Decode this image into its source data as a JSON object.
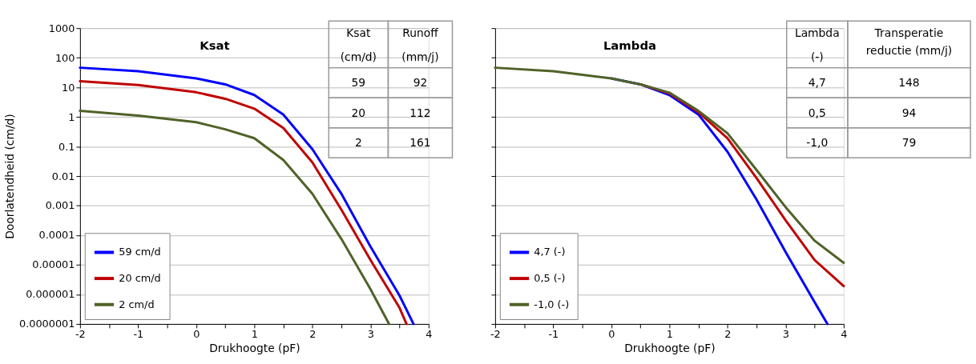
{
  "chart_data": [
    {
      "type": "line",
      "title": "Ksat",
      "xlabel": "Drukhoogte (pF)",
      "ylabel": "Doorlatendheid (cm/d)",
      "log": "y",
      "grid": "y",
      "legend": "bottom left",
      "marker": "none",
      "line_style": "solid",
      "xlim": [
        -2,
        4
      ],
      "xticks": [
        -2,
        {
          "value": -1.5,
          "label": null
        },
        -1,
        {
          "value": -0.5,
          "label": null
        },
        0,
        {
          "value": 0.5,
          "label": null
        },
        1,
        {
          "value": 1.5,
          "label": null
        },
        2,
        {
          "value": 2.5,
          "label": null
        },
        3,
        {
          "value": 3.5,
          "label": null
        },
        4
      ],
      "ylim": [
        1e-07,
        1000
      ],
      "yticks": [
        {
          "value": 1e-07,
          "label": "0.0000001"
        },
        {
          "value": 1e-06,
          "label": "0.000001"
        },
        {
          "value": 1e-05,
          "label": "0.00001"
        },
        0.0001,
        0.001,
        0.01,
        0.1,
        1,
        10,
        100,
        1000
      ],
      "annotations": [
        "Ksat (cm/d)",
        "Runoff (mm/j)",
        "59",
        "92",
        "20",
        "112",
        "2",
        "161"
      ],
      "series": [
        {
          "name": "59 cm/d",
          "color": "#0000ff",
          "x": [
            -2,
            -1,
            0,
            0.5,
            1,
            1.5,
            2,
            2.5,
            3,
            3.5,
            3.74
          ],
          "values": [
            46,
            35,
            20,
            12.6,
            5.5,
            1.2,
            0.081,
            0.0025,
            4.1e-05,
            9.1e-07,
            1e-07
          ]
        },
        {
          "name": "20 cm/d",
          "color": "#c00000",
          "x": [
            -2,
            -1,
            0,
            0.5,
            1,
            1.5,
            2,
            2.5,
            3,
            3.5,
            3.62
          ],
          "values": [
            16,
            12,
            6.8,
            4.1,
            1.9,
            0.42,
            0.029,
            0.00072,
            1.45e-05,
            3.5e-07,
            1e-07
          ]
        },
        {
          "name": " 2 cm/d",
          "color": "#4f6228",
          "x": [
            -2,
            -1,
            0,
            0.5,
            1,
            1.5,
            2,
            2.5,
            3,
            3.32
          ],
          "values": [
            1.6,
            1.1,
            0.66,
            0.38,
            0.19,
            0.035,
            0.0025,
            7.4e-05,
            1.5e-06,
            1e-07
          ]
        }
      ]
    },
    {
      "type": "line",
      "title": "Lambda",
      "xlabel": "Drukhoogte (pF)",
      "log": "y",
      "grid": "y",
      "legend": "bottom left",
      "marker": "none",
      "line_style": "solid",
      "tick_labels": "x",
      "xlim": [
        -2,
        4
      ],
      "xticks": [
        -2,
        {
          "value": -1.5,
          "label": null
        },
        -1,
        {
          "value": -0.5,
          "label": null
        },
        0,
        {
          "value": 0.5,
          "label": null
        },
        1,
        {
          "value": 1.5,
          "label": null
        },
        2,
        {
          "value": 2.5,
          "label": null
        },
        3,
        {
          "value": 3.5,
          "label": null
        },
        4
      ],
      "ylim": [
        1e-07,
        1000
      ],
      "yticks": [
        1e-07,
        1e-06,
        1e-05,
        0.0001,
        0.001,
        0.01,
        0.1,
        1,
        10,
        100,
        1000
      ],
      "annotations": [
        "Lambda (-)",
        "Transperatie reductie (mm/j)",
        "4,7",
        "148",
        "0,5",
        "94",
        "-1,0",
        "79"
      ],
      "series": [
        {
          "name": "4,7 (-)",
          "color": "#0000ff",
          "x": [
            0,
            0.5,
            1,
            1.5,
            2,
            2.5,
            3,
            3.5,
            3.72
          ],
          "values": [
            20,
            12.6,
            5.5,
            1.2,
            0.066,
            0.0016,
            2.7e-05,
            5.4e-07,
            1e-07
          ]
        },
        {
          "name": "0,5 (-)",
          "color": "#c00000",
          "x": [
            0.5,
            1,
            1.5,
            2,
            2.5,
            3,
            3.5,
            4
          ],
          "values": [
            12.6,
            6.2,
            1.45,
            0.19,
            0.0085,
            0.00032,
            1.45e-05,
            1.9e-06
          ]
        },
        {
          "name": "-1,0 (-)",
          "color": "#4f6228",
          "x": [
            -2,
            -1,
            0,
            0.5,
            1,
            1.5,
            2,
            2.5,
            3,
            3.5,
            4
          ],
          "values": [
            46,
            35,
            20,
            12.6,
            6.6,
            1.6,
            0.28,
            0.016,
            0.00089,
            6.5e-05,
            1.17e-05
          ]
        }
      ]
    }
  ]
}
